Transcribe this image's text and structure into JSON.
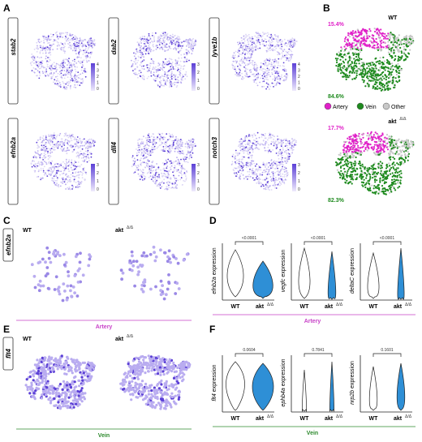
{
  "panels": {
    "A": {
      "label": "A",
      "genes": [
        "stab2",
        "dab2",
        "lyve1b",
        "efnb2a",
        "dll4",
        "notch3"
      ],
      "scales": [
        [
          "4",
          "3",
          "2",
          "1",
          "0"
        ],
        [
          "3",
          "2",
          "1",
          "0"
        ],
        [
          "4",
          "3",
          "2",
          "1",
          "0"
        ],
        [
          "3",
          "2",
          "1",
          "0"
        ],
        [
          "3",
          "2",
          "1",
          "0"
        ],
        [
          "3",
          "2",
          "1",
          "0"
        ]
      ]
    },
    "B": {
      "label": "B",
      "wt_label": "WT",
      "mut_label": "akt",
      "mut_sup": "Δ/Δ",
      "wt_artery_pct": "15.4%",
      "wt_vein_pct": "84.6%",
      "mut_artery_pct": "17.7%",
      "mut_vein_pct": "82.3%",
      "legend": [
        {
          "label": "Artery",
          "color": "#e020c8"
        },
        {
          "label": "Vein",
          "color": "#1e8a1e"
        },
        {
          "label": "Other",
          "color": "#c8c8c8"
        }
      ]
    },
    "C": {
      "label": "C",
      "gene": "efnb2a",
      "wt": "WT",
      "mut": "akt",
      "mut_sup": "Δ/Δ",
      "footer": "Artery"
    },
    "D": {
      "label": "D",
      "footer": "Artery",
      "plots": [
        {
          "ylabel_gene": "efnb2a",
          "ylabel_suffix": " expression",
          "pvalue": "<0.0001"
        },
        {
          "ylabel_gene": "vegfc",
          "ylabel_suffix": " expression",
          "pvalue": "<0.0001"
        },
        {
          "ylabel_gene": "deltaC",
          "ylabel_suffix": " expression",
          "pvalue": "<0.0001"
        }
      ],
      "wt": "WT",
      "mut": "akt",
      "mut_sup": "Δ/Δ"
    },
    "E": {
      "label": "E",
      "gene": "flt4",
      "wt": "WT",
      "mut": "akt",
      "mut_sup": "Δ/Δ",
      "footer": "Vein"
    },
    "F": {
      "label": "F",
      "footer": "Vein",
      "plots": [
        {
          "ylabel_gene": "flt4",
          "ylabel_suffix": " expression",
          "pvalue": "0.0604"
        },
        {
          "ylabel_gene": "ephb4a",
          "ylabel_suffix": " expression",
          "pvalue": "0.7841"
        },
        {
          "ylabel_gene": "nrp2b",
          "ylabel_suffix": " expression",
          "pvalue": "0.1601"
        }
      ],
      "wt": "WT",
      "mut": "akt",
      "mut_sup": "Δ/Δ"
    }
  },
  "colors": {
    "purple": "#5b3fd6",
    "light_purple": "#b9acf0",
    "artery": "#e020c8",
    "vein": "#1e8a1e",
    "other": "#c8c8c8",
    "wt_violin": "#ffffff",
    "mut_violin": "#2e8fd6"
  }
}
